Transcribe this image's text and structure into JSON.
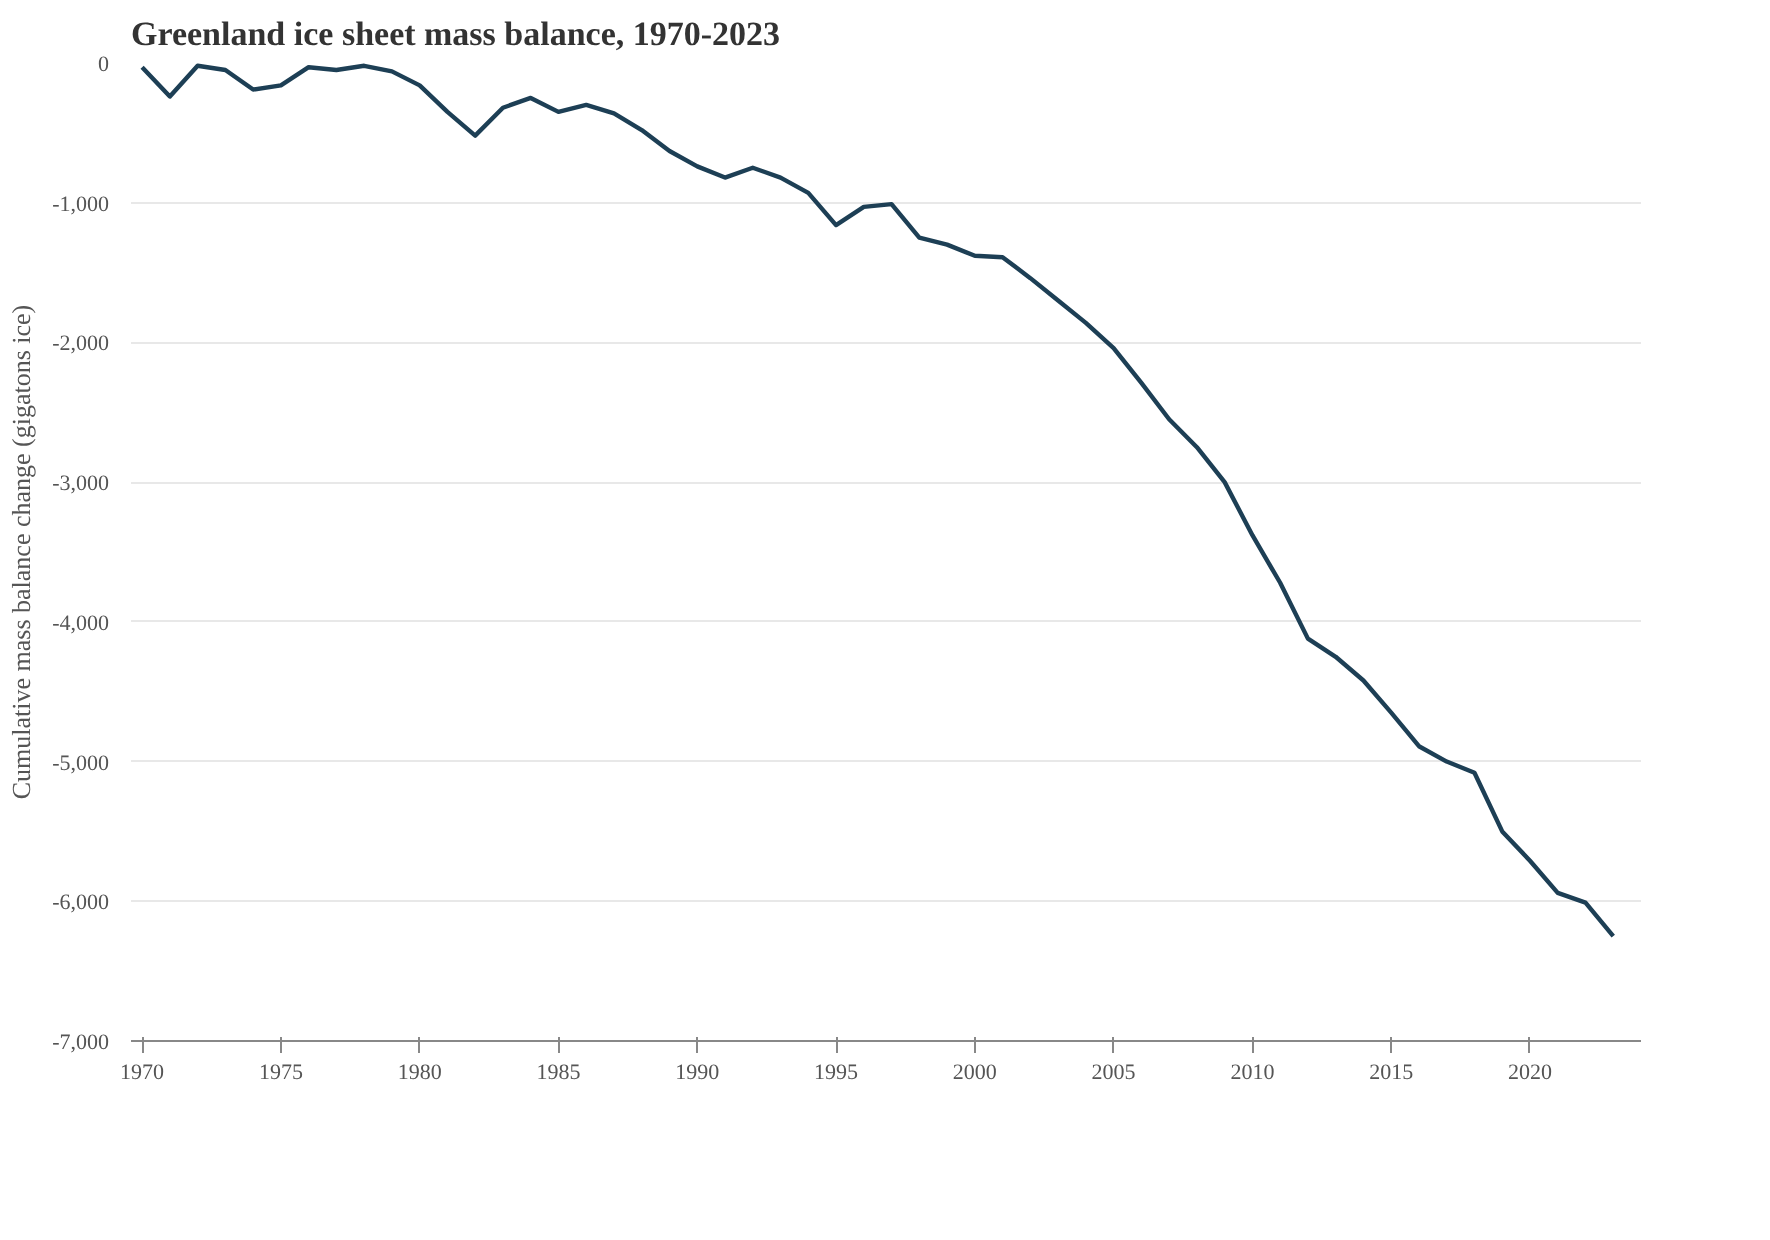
{
  "chart_data": {
    "type": "line",
    "title": "Greenland ice sheet mass balance, 1970-2023",
    "ylabel": "Cumulative mass balance change (gigatons ice)",
    "x": [
      1970,
      1971,
      1972,
      1973,
      1974,
      1975,
      1976,
      1977,
      1978,
      1979,
      1980,
      1981,
      1982,
      1983,
      1984,
      1985,
      1986,
      1987,
      1988,
      1989,
      1990,
      1991,
      1992,
      1993,
      1994,
      1995,
      1996,
      1997,
      1998,
      1999,
      2000,
      2001,
      2002,
      2003,
      2004,
      2005,
      2006,
      2007,
      2008,
      2009,
      2010,
      2011,
      2012,
      2013,
      2014,
      2015,
      2016,
      2017,
      2018,
      2019,
      2020,
      2021,
      2022,
      2023
    ],
    "series": [
      {
        "color": "#1d3f55",
        "values": [
          -30,
          -240,
          -20,
          -50,
          -190,
          -160,
          -30,
          -50,
          -20,
          -60,
          -160,
          -350,
          -520,
          -320,
          -250,
          -350,
          -300,
          -360,
          -480,
          -630,
          -740,
          -820,
          -750,
          -820,
          -930,
          -1160,
          -1030,
          -1010,
          -1250,
          -1300,
          -1380,
          -1390,
          -1540,
          -1700,
          -1860,
          -2040,
          -2290,
          -2550,
          -2750,
          -3000,
          -3380,
          -3720,
          -4120,
          -4250,
          -4420,
          -4650,
          -4890,
          -5000,
          -5080,
          -5500,
          -5710,
          -5940,
          -6010,
          -6250
        ]
      }
    ],
    "xlim": [
      1969.6,
      2024
    ],
    "ylim": [
      -7000,
      0
    ],
    "xticks": [
      1970,
      1975,
      1980,
      1985,
      1990,
      1995,
      2000,
      2005,
      2010,
      2015,
      2020
    ],
    "yticks": [
      {
        "value": 0,
        "label": "0"
      },
      {
        "value": -1000,
        "label": "-1,000"
      },
      {
        "value": -2000,
        "label": "-2,000"
      },
      {
        "value": -3000,
        "label": "-3,000"
      },
      {
        "value": -4000,
        "label": "-4,000"
      },
      {
        "value": -5000,
        "label": "-5,000"
      },
      {
        "value": -6000,
        "label": "-6,000"
      },
      {
        "value": -7000,
        "label": "-7,000"
      }
    ],
    "grid": "y",
    "marker": "none",
    "line_style": "solid"
  }
}
